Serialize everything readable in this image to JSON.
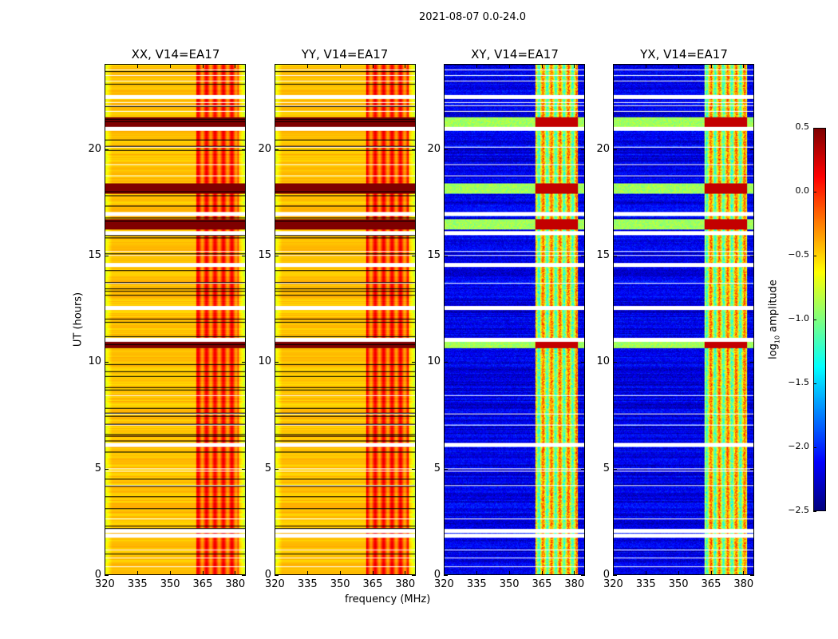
{
  "figure_title": "2021-08-07 0.0-24.0",
  "chart_data": {
    "type": "heatmap",
    "title": "2021-08-07 0.0-24.0",
    "xlabel": "frequency (MHz)",
    "ylabel": "UT (hours)",
    "xlim": [
      320,
      385
    ],
    "ylim": [
      0,
      24
    ],
    "xticks": [
      320,
      335,
      350,
      365,
      380
    ],
    "yticks": [
      0,
      5,
      10,
      15,
      20
    ],
    "panels": [
      {
        "title": "XX, V14=EA17",
        "kind": "parallel"
      },
      {
        "title": "YY, V14=EA17",
        "kind": "parallel"
      },
      {
        "title": "XY, V14=EA17",
        "kind": "cross"
      },
      {
        "title": "YX, V14=EA17",
        "kind": "cross"
      }
    ],
    "colorbar": {
      "label": "log10 amplitude",
      "label_main": "log",
      "label_sub": "10",
      "label_rest": " amplitude",
      "range": [
        -2.5,
        0.5
      ],
      "ticks": [
        "0.5",
        "0.0",
        "−0.5",
        "−1.0",
        "−1.5",
        "−2.0",
        "−2.5"
      ],
      "tick_values": [
        0.5,
        0.0,
        -0.5,
        -1.0,
        -1.5,
        -2.0,
        -2.5
      ],
      "colormap": "jet"
    },
    "features": {
      "rfi_band_mhz": [
        362,
        382
      ],
      "hot_rows_ut": [
        21.3,
        18.2,
        16.5,
        10.9
      ],
      "flagged_rows_ut": [
        22.5,
        21.0,
        17.0,
        16.1,
        14.6,
        12.55,
        11.05,
        6.1,
        2.05,
        1.85
      ]
    }
  }
}
